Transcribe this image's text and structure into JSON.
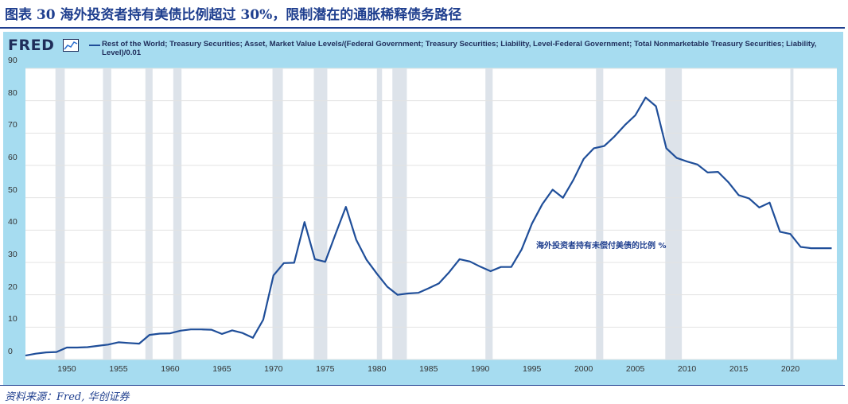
{
  "figure": {
    "title": "图表 30  海外投资者持有美债比例超过 30%，限制潜在的通胀稀释债务路径",
    "source": "资料来源：Fred, 华创证券"
  },
  "fred": {
    "logo": "FRED",
    "legend": "Rest of the World; Treasury Securities; Asset, Market Value Levels/(Federal Government; Treasury Securities; Liability, Level-Federal Government; Total Nonmarketable Treasury Securities; Liability, Level)/0.01"
  },
  "colors": {
    "line": "#1f4e99",
    "recession": "#dde3ea",
    "panel": "#a6dcf0",
    "title": "#1f3f8f"
  },
  "chart_data": {
    "type": "line",
    "title": "",
    "xlabel": "",
    "ylabel": "",
    "xlim": [
      1946,
      2024.5
    ],
    "ylim": [
      0,
      90
    ],
    "yticks": [
      0,
      10,
      20,
      30,
      40,
      50,
      60,
      70,
      80,
      90
    ],
    "xticks": [
      1950,
      1955,
      1960,
      1965,
      1970,
      1975,
      1980,
      1985,
      1990,
      1995,
      2000,
      2005,
      2010,
      2015,
      2020
    ],
    "recessions": [
      [
        1948.9,
        1949.8
      ],
      [
        1953.5,
        1954.3
      ],
      [
        1957.6,
        1958.3
      ],
      [
        1960.3,
        1961.1
      ],
      [
        1969.9,
        1970.9
      ],
      [
        1973.9,
        1975.2
      ],
      [
        1980.0,
        1980.5
      ],
      [
        1981.5,
        1982.9
      ],
      [
        1990.5,
        1991.2
      ],
      [
        2001.2,
        2001.9
      ],
      [
        2007.9,
        2009.5
      ],
      [
        2020.0,
        2020.3
      ]
    ],
    "annotation": "海外投资者持有未偿付美债的比例 %",
    "series": [
      {
        "name": "Rest of the World share of Treasury Securities",
        "x": [
          1946,
          1947,
          1948,
          1949,
          1950,
          1951,
          1952,
          1953,
          1954,
          1955,
          1956,
          1957,
          1958,
          1959,
          1960,
          1961,
          1962,
          1963,
          1964,
          1965,
          1966,
          1967,
          1968,
          1969,
          1970,
          1971,
          1972,
          1973,
          1974,
          1975,
          1976,
          1977,
          1978,
          1979,
          1980,
          1981,
          1982,
          1983,
          1984,
          1985,
          1986,
          1987,
          1988,
          1989,
          1990,
          1991,
          1992,
          1993,
          1994,
          1995,
          1996,
          1997,
          1998,
          1999,
          2000,
          2001,
          2002,
          2003,
          2004,
          2005,
          2006,
          2007,
          2008,
          2009,
          2010,
          2011,
          2012,
          2013,
          2014,
          2015,
          2016,
          2017,
          2018,
          2019,
          2020,
          2021,
          2022,
          2023,
          2024
        ],
        "values": [
          1.2,
          1.8,
          2.2,
          2.3,
          3.7,
          3.7,
          3.8,
          4.2,
          4.6,
          5.3,
          5.1,
          4.9,
          7.6,
          8.0,
          8.1,
          8.9,
          9.3,
          9.3,
          9.2,
          7.9,
          9.0,
          8.2,
          6.7,
          12.3,
          26.0,
          29.8,
          29.9,
          42.5,
          31.0,
          30.2,
          38.8,
          47.2,
          37.0,
          30.8,
          26.5,
          22.5,
          20.0,
          20.4,
          20.6,
          22.0,
          23.5,
          27.0,
          31.0,
          30.3,
          28.7,
          27.3,
          28.6,
          28.6,
          34.0,
          42.0,
          48.0,
          52.5,
          50.0,
          55.5,
          62.0,
          65.3,
          66.0,
          69.0,
          72.5,
          75.5,
          81.0,
          78.3,
          65.3,
          62.3,
          61.2,
          60.3,
          57.8,
          58.0,
          54.8,
          50.8,
          49.8,
          47.0,
          48.5,
          39.5,
          38.8,
          34.8,
          34.4,
          34.4,
          34.4
        ]
      }
    ]
  }
}
